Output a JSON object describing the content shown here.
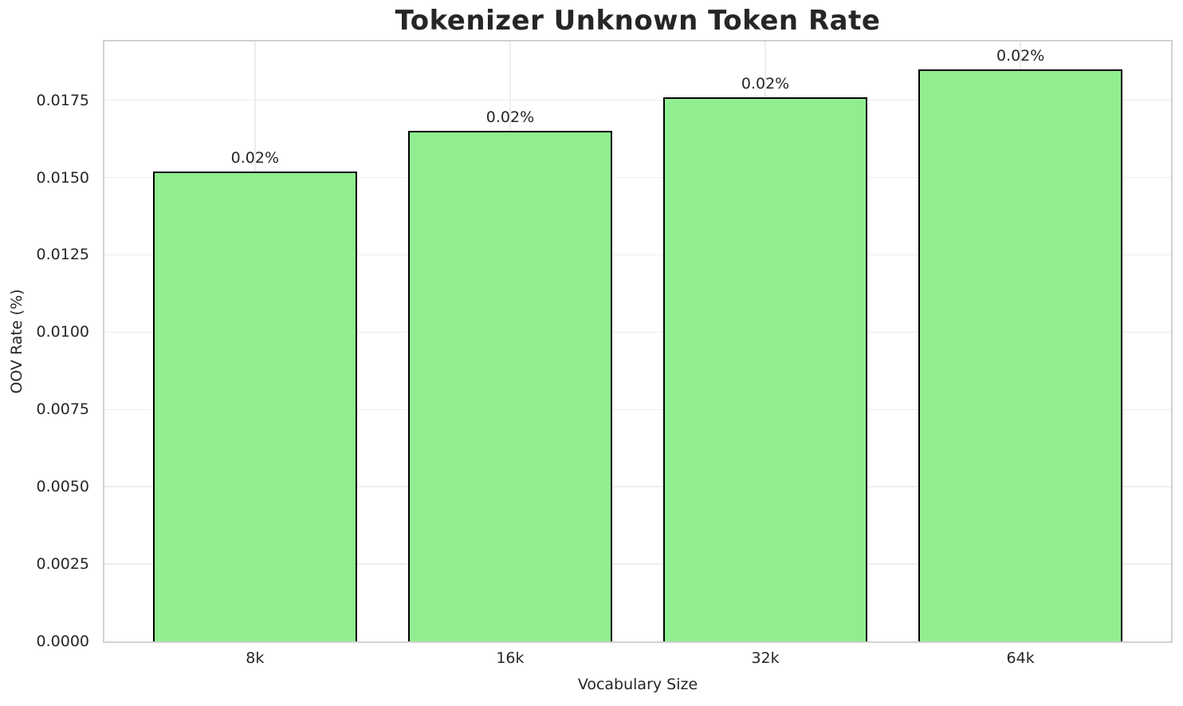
{
  "chart_data": {
    "type": "bar",
    "title": "Tokenizer Unknown Token Rate",
    "xlabel": "Vocabulary Size",
    "ylabel": "OOV Rate (%)",
    "categories": [
      "8k",
      "16k",
      "32k",
      "64k"
    ],
    "values": [
      0.0152,
      0.0165,
      0.0176,
      0.0185
    ],
    "bar_labels": [
      "0.02%",
      "0.02%",
      "0.02%",
      "0.02%"
    ],
    "yticks": [
      0.0,
      0.0025,
      0.005,
      0.0075,
      0.01,
      0.0125,
      0.015,
      0.0175
    ],
    "ytick_labels": [
      "0.0000",
      "0.0025",
      "0.0050",
      "0.0075",
      "0.0100",
      "0.0125",
      "0.0150",
      "0.0175"
    ],
    "ylim": [
      0,
      0.0194
    ],
    "grid": "both",
    "legend": "none",
    "colors": {
      "bar_fill": "#90ee90",
      "bar_edge": "#000000",
      "gridline": "#ededed",
      "spine": "#d0d0d0",
      "text": "#262626",
      "background": "#ffffff"
    }
  }
}
